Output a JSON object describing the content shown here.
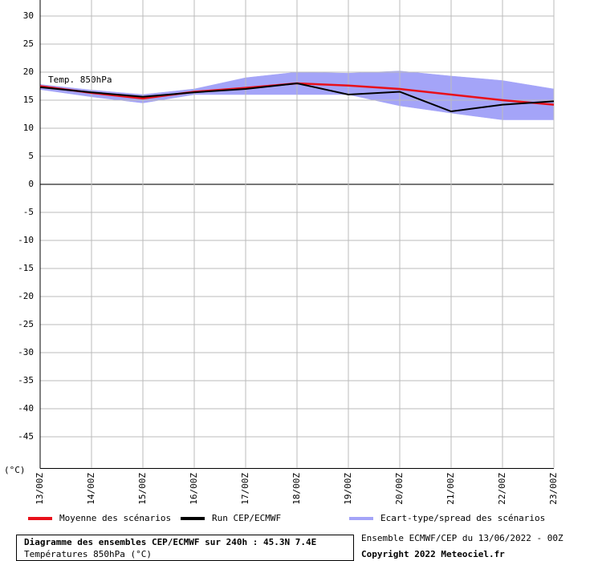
{
  "chart_data": {
    "type": "line",
    "title": "Diagramme des ensembles CEP/ECMWF sur 240h : 45.3N 7.4E",
    "subtitle": "Températures 850hPa (°C)",
    "y_axis_label": "(°C)",
    "annotation": "Temp. 850hPa",
    "source": "Ensemble ECMWF/CEP du 13/06/2022 - 00Z",
    "copyright": "Copyright 2022 Meteociel.fr",
    "categories": [
      "13/00Z",
      "14/00Z",
      "15/00Z",
      "16/00Z",
      "17/00Z",
      "18/00Z",
      "19/00Z",
      "20/00Z",
      "21/00Z",
      "22/00Z",
      "23/00Z"
    ],
    "series": [
      {
        "name": "Moyenne des scénarios",
        "color": "#e8101a",
        "values": [
          17.5,
          16.3,
          15.3,
          16.5,
          17.2,
          18,
          17.6,
          17,
          16,
          15,
          14.2
        ]
      },
      {
        "name": "Run CEP/ECMWF",
        "color": "#000000",
        "values": [
          17.3,
          16.4,
          15.6,
          16.4,
          17,
          18,
          16,
          16.5,
          13,
          14.2,
          14.8
        ]
      },
      {
        "name": "Ecart-type/spread des scénarios",
        "color": "#a4a4f8",
        "upper": [
          17.8,
          16.8,
          16,
          17,
          19,
          20,
          19.8,
          20.2,
          19.3,
          18.5,
          17
        ],
        "lower": [
          16.9,
          15.6,
          14.5,
          16,
          16,
          16,
          16,
          14,
          12.7,
          11.5,
          11.5
        ]
      }
    ],
    "ylim": [
      -50.5,
      30
    ],
    "yticks": [
      30,
      25,
      20,
      15,
      10,
      5,
      0,
      -5,
      -10,
      -15,
      -20,
      -25,
      -30,
      -35,
      -40,
      -45
    ],
    "grid": true
  }
}
